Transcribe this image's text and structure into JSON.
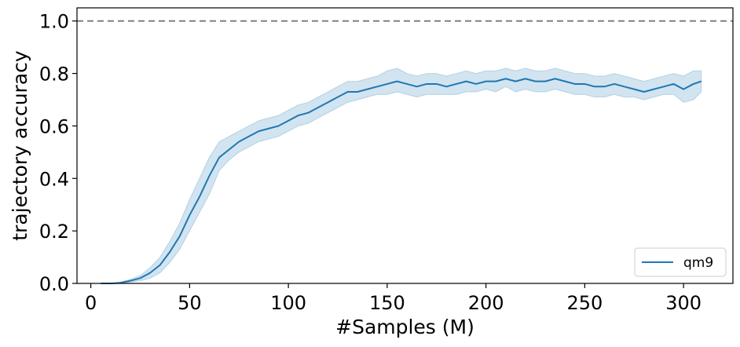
{
  "chart_data": {
    "type": "line",
    "xlabel": "#Samples (M)",
    "ylabel": "trajectory accuracy",
    "xlim": [
      -7,
      325
    ],
    "ylim": [
      0,
      1.05
    ],
    "xticks": [
      0,
      50,
      100,
      150,
      200,
      250,
      300
    ],
    "xtick_labels": [
      "0",
      "50",
      "100",
      "150",
      "200",
      "250",
      "300"
    ],
    "yticks": [
      0.0,
      0.2,
      0.4,
      0.6,
      0.8,
      1.0
    ],
    "ytick_labels": [
      "0.0",
      "0.2",
      "0.4",
      "0.6",
      "0.8",
      "1.0"
    ],
    "grid": false,
    "legend_position": "lower-right",
    "reference_line": {
      "y": 1.0,
      "style": "dashed",
      "color": "#808080"
    },
    "series": [
      {
        "name": "qm9",
        "color": "#1f77b4",
        "band_color": "#1f77b4",
        "band_opacity": 0.2,
        "x": [
          5,
          10,
          15,
          20,
          25,
          30,
          35,
          40,
          45,
          50,
          55,
          60,
          65,
          70,
          75,
          80,
          85,
          90,
          95,
          100,
          105,
          110,
          115,
          120,
          125,
          130,
          135,
          140,
          145,
          150,
          155,
          160,
          165,
          170,
          175,
          180,
          185,
          190,
          195,
          200,
          205,
          210,
          215,
          220,
          225,
          230,
          235,
          240,
          245,
          250,
          255,
          260,
          265,
          270,
          275,
          280,
          285,
          290,
          295,
          300,
          305,
          309
        ],
        "y": [
          0.0,
          0.0,
          0.002,
          0.01,
          0.02,
          0.04,
          0.07,
          0.12,
          0.18,
          0.26,
          0.33,
          0.41,
          0.48,
          0.51,
          0.54,
          0.56,
          0.58,
          0.59,
          0.6,
          0.62,
          0.64,
          0.65,
          0.67,
          0.69,
          0.71,
          0.73,
          0.73,
          0.74,
          0.75,
          0.76,
          0.77,
          0.76,
          0.75,
          0.76,
          0.76,
          0.75,
          0.76,
          0.77,
          0.76,
          0.77,
          0.77,
          0.78,
          0.77,
          0.78,
          0.77,
          0.77,
          0.78,
          0.77,
          0.76,
          0.76,
          0.75,
          0.75,
          0.76,
          0.75,
          0.74,
          0.73,
          0.74,
          0.75,
          0.76,
          0.74,
          0.76,
          0.77
        ],
        "y_low": [
          0.0,
          0.0,
          0.0,
          0.005,
          0.01,
          0.02,
          0.04,
          0.08,
          0.13,
          0.2,
          0.27,
          0.34,
          0.43,
          0.47,
          0.5,
          0.52,
          0.54,
          0.55,
          0.56,
          0.58,
          0.6,
          0.61,
          0.63,
          0.65,
          0.67,
          0.69,
          0.7,
          0.71,
          0.72,
          0.72,
          0.73,
          0.72,
          0.71,
          0.72,
          0.72,
          0.72,
          0.72,
          0.73,
          0.73,
          0.74,
          0.73,
          0.75,
          0.73,
          0.74,
          0.73,
          0.73,
          0.74,
          0.73,
          0.72,
          0.72,
          0.71,
          0.71,
          0.72,
          0.71,
          0.71,
          0.7,
          0.71,
          0.72,
          0.72,
          0.69,
          0.7,
          0.73
        ],
        "y_high": [
          0.0,
          0.0,
          0.006,
          0.015,
          0.03,
          0.06,
          0.1,
          0.16,
          0.23,
          0.32,
          0.4,
          0.48,
          0.54,
          0.56,
          0.58,
          0.6,
          0.62,
          0.63,
          0.64,
          0.66,
          0.68,
          0.69,
          0.71,
          0.73,
          0.75,
          0.77,
          0.77,
          0.78,
          0.79,
          0.81,
          0.82,
          0.8,
          0.79,
          0.8,
          0.8,
          0.79,
          0.8,
          0.81,
          0.8,
          0.81,
          0.81,
          0.82,
          0.81,
          0.82,
          0.81,
          0.81,
          0.82,
          0.81,
          0.8,
          0.8,
          0.79,
          0.79,
          0.8,
          0.79,
          0.78,
          0.77,
          0.78,
          0.79,
          0.8,
          0.79,
          0.81,
          0.81
        ]
      }
    ]
  }
}
